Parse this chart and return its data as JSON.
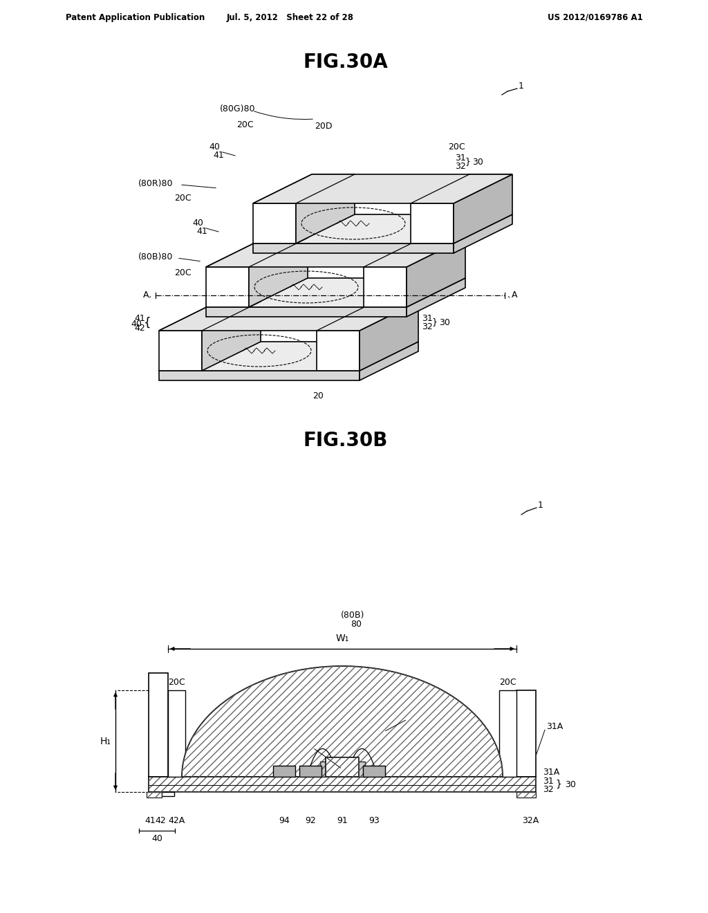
{
  "header_left": "Patent Application Publication",
  "header_center": "Jul. 5, 2012   Sheet 22 of 28",
  "header_right": "US 2012/0169786 A1",
  "fig_title_A": "FIG.30A",
  "fig_title_B": "FIG.30B",
  "bg_color": "#ffffff",
  "line_color": "#000000",
  "label_fontsize": 9,
  "header_fontsize": 9,
  "title_fontsize": 20
}
